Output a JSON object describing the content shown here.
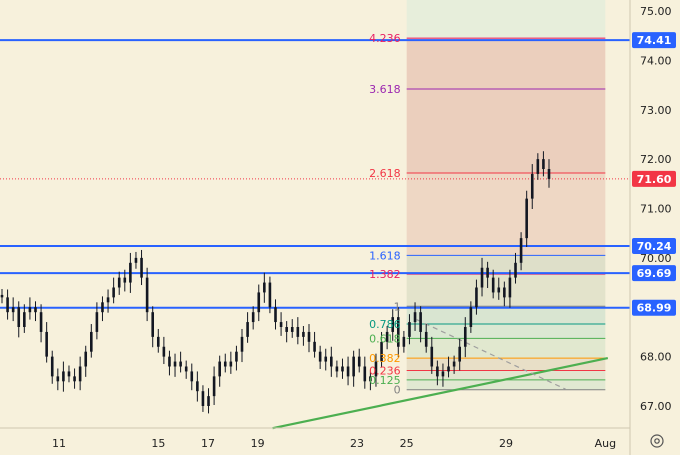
{
  "chart_data": {
    "type": "candlestick",
    "y_ticks": [
      "75.00",
      "74.00",
      "73.00",
      "72.00",
      "71.00",
      "70.00",
      "69.00",
      "68.00",
      "67.00"
    ],
    "x_ticks": [
      {
        "label": "11",
        "x": 11
      },
      {
        "label": "15",
        "x": 15
      },
      {
        "label": "17",
        "x": 17
      },
      {
        "label": "19",
        "x": 19
      },
      {
        "label": "23",
        "x": 23
      },
      {
        "label": "25",
        "x": 25
      },
      {
        "label": "29",
        "x": 29
      },
      {
        "label": "Aug",
        "x": 33
      }
    ],
    "ylim": [
      66.6,
      75.1
    ],
    "xlim": [
      8.0,
      34.2
    ],
    "horizontal_levels": [
      {
        "price": 74.41,
        "label": "74.41",
        "color": "#2962ff"
      },
      {
        "price": 70.24,
        "label": "70.24",
        "color": "#2962ff"
      },
      {
        "price": 69.69,
        "label": "69.69",
        "color": "#2962ff"
      },
      {
        "price": 68.99,
        "label": "68.99",
        "color": "#2962ff"
      }
    ],
    "last_price": {
      "price": 71.6,
      "label": "71.60",
      "color": "#f23645"
    },
    "fibonacci": {
      "start_x": 25.0,
      "end_x": 33.0,
      "levels": [
        {
          "ratio": "4.236",
          "price": 74.45,
          "color": "#e91e63"
        },
        {
          "ratio": "3.618",
          "price": 73.42,
          "color": "#9c27b0"
        },
        {
          "ratio": "2.618",
          "price": 71.72,
          "color": "#f23645"
        },
        {
          "ratio": "1.618",
          "price": 70.05,
          "color": "#2962ff"
        },
        {
          "ratio": "1.382",
          "price": 69.67,
          "color": "#e91e63"
        },
        {
          "ratio": "1",
          "price": 69.02,
          "color": "#808080"
        },
        {
          "ratio": "0.786",
          "price": 68.66,
          "color": "#089981"
        },
        {
          "ratio": "0.618",
          "price": 68.37,
          "color": "#4caf50"
        },
        {
          "ratio": "0.382",
          "price": 67.97,
          "color": "#ff9800"
        },
        {
          "ratio": "0.236",
          "price": 67.72,
          "color": "#f23645"
        },
        {
          "ratio": "0.125",
          "price": 67.53,
          "color": "#4caf50"
        },
        {
          "ratio": "0",
          "price": 67.33,
          "color": "#808080"
        }
      ]
    },
    "trendlines": [
      {
        "x1": 19.6,
        "y1": 66.55,
        "x2": 33.1,
        "y2": 67.97,
        "color": "#4caf50",
        "dashed": false
      },
      {
        "x1": 25.4,
        "y1": 68.75,
        "x2": 31.4,
        "y2": 67.34,
        "color": "#9e9e9e",
        "dashed": true
      }
    ],
    "series": [
      {
        "closes": [
          69.2,
          68.9,
          69.0,
          68.6,
          68.9,
          69.0,
          68.9,
          68.5,
          68.0,
          67.6,
          67.5,
          67.7,
          67.6,
          67.5,
          67.8,
          68.1,
          68.5,
          68.9,
          69.1,
          69.2,
          69.4,
          69.6,
          69.5,
          69.9,
          70.0,
          69.6,
          68.9,
          68.4,
          68.2,
          68.0,
          67.8,
          67.9,
          67.8,
          67.7,
          67.5,
          67.3,
          67.0,
          67.2,
          67.6,
          67.9,
          67.8,
          67.9,
          68.1,
          68.4,
          68.7,
          68.9,
          69.3,
          69.5,
          69.0,
          68.7,
          68.6,
          68.5,
          68.6,
          68.4,
          68.5,
          68.3,
          68.1,
          67.9,
          68.0,
          67.8,
          67.7,
          67.8,
          67.6,
          68.0,
          67.8,
          67.5,
          67.6,
          67.9,
          68.3,
          68.5,
          68.8,
          68.2,
          68.4,
          68.7,
          68.9,
          68.5,
          68.2,
          67.8,
          67.6,
          67.7,
          67.8,
          67.9,
          68.2,
          68.6,
          69.0,
          69.4,
          69.8,
          69.6,
          69.3,
          69.4,
          69.2,
          69.6,
          69.9,
          70.4,
          71.2,
          71.7,
          72.0,
          71.8,
          71.6
        ]
      }
    ]
  }
}
